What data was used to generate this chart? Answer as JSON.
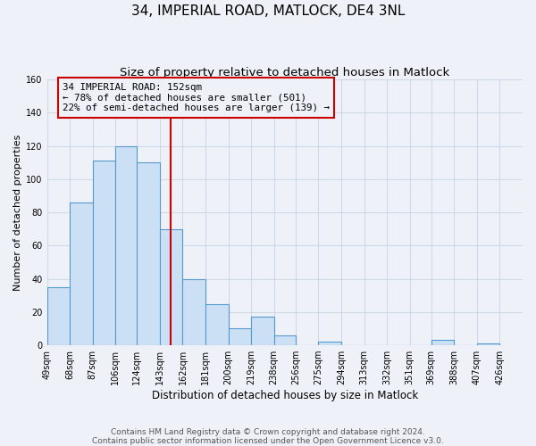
{
  "title": "34, IMPERIAL ROAD, MATLOCK, DE4 3NL",
  "subtitle": "Size of property relative to detached houses in Matlock",
  "xlabel": "Distribution of detached houses by size in Matlock",
  "ylabel": "Number of detached properties",
  "bar_left_edges": [
    49,
    68,
    87,
    106,
    124,
    143,
    162,
    181,
    200,
    219,
    238,
    256,
    275,
    294,
    313,
    332,
    351,
    369,
    388,
    407
  ],
  "bar_widths": [
    19,
    19,
    19,
    18,
    19,
    19,
    19,
    19,
    19,
    19,
    18,
    19,
    19,
    19,
    19,
    19,
    18,
    19,
    19,
    19
  ],
  "bar_heights": [
    35,
    86,
    111,
    120,
    110,
    70,
    40,
    25,
    10,
    17,
    6,
    0,
    2,
    0,
    0,
    0,
    0,
    3,
    0,
    1
  ],
  "x_tick_labels": [
    "49sqm",
    "68sqm",
    "87sqm",
    "106sqm",
    "124sqm",
    "143sqm",
    "162sqm",
    "181sqm",
    "200sqm",
    "219sqm",
    "238sqm",
    "256sqm",
    "275sqm",
    "294sqm",
    "313sqm",
    "332sqm",
    "351sqm",
    "369sqm",
    "388sqm",
    "407sqm",
    "426sqm"
  ],
  "x_tick_positions": [
    49,
    68,
    87,
    106,
    124,
    143,
    162,
    181,
    200,
    219,
    238,
    256,
    275,
    294,
    313,
    332,
    351,
    369,
    388,
    407,
    426
  ],
  "ylim": [
    0,
    160
  ],
  "yticks": [
    0,
    20,
    40,
    60,
    80,
    100,
    120,
    140,
    160
  ],
  "bar_face_color": "#cce0f5",
  "bar_edge_color": "#5599cc",
  "grid_color": "#d0d8e8",
  "background_color": "#eef2f8",
  "vline_x": 152,
  "vline_color": "#cc0000",
  "annotation_text": "34 IMPERIAL ROAD: 152sqm\n← 78% of detached houses are smaller (501)\n22% of semi-detached houses are larger (139) →",
  "annotation_box_color": "#cc0000",
  "footer_line1": "Contains HM Land Registry data © Crown copyright and database right 2024.",
  "footer_line2": "Contains public sector information licensed under the Open Government Licence v3.0.",
  "title_fontsize": 11,
  "subtitle_fontsize": 9.5,
  "xlabel_fontsize": 8.5,
  "ylabel_fontsize": 8,
  "tick_fontsize": 7,
  "annotation_fontsize": 7.8,
  "footer_fontsize": 6.5
}
